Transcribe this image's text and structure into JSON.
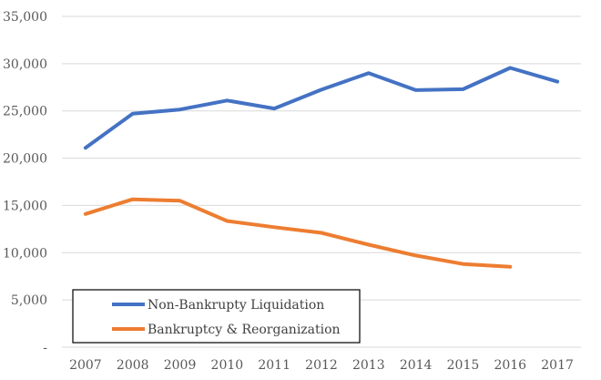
{
  "chart_data": {
    "type": "line",
    "title": "",
    "xlabel": "",
    "ylabel": "",
    "categories": [
      "2007",
      "2008",
      "2009",
      "2010",
      "2011",
      "2012",
      "2013",
      "2014",
      "2015",
      "2016",
      "2017"
    ],
    "ylim": [
      0,
      35000
    ],
    "yticks": [
      0,
      5000,
      10000,
      15000,
      20000,
      25000,
      30000,
      35000
    ],
    "ytick_labels": [
      "-",
      "5,000",
      "10,000",
      "15,000",
      "20,000",
      "25,000",
      "30,000",
      "35,000"
    ],
    "grid": true,
    "legend_position": "bottom-left",
    "series": [
      {
        "name": "Non-Bankrupty Liquidation",
        "color": "#4472C4",
        "values": [
          21100,
          24700,
          25150,
          26100,
          25250,
          27250,
          29000,
          27200,
          27300,
          29550,
          28100
        ]
      },
      {
        "name": "Bankruptcy & Reorganization",
        "color": "#ED7D31",
        "values": [
          14100,
          15650,
          15500,
          13350,
          12700,
          12100,
          10850,
          9700,
          8800,
          8500,
          null
        ]
      }
    ]
  }
}
